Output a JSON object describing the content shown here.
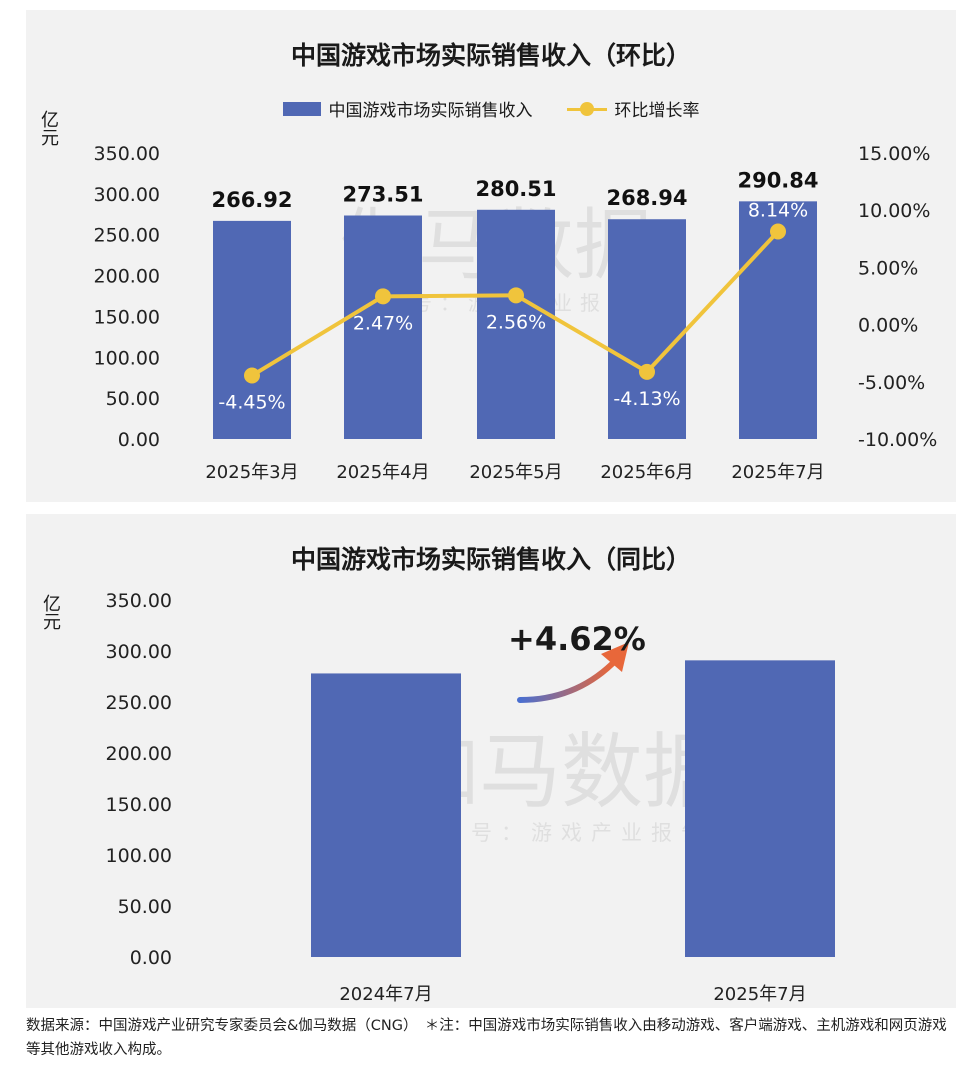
{
  "chart_data": [
    {
      "type": "bar",
      "title": "中国游戏市场实际销售收入（环比）",
      "ylabel": "亿元",
      "categories": [
        "2025年3月",
        "2025年4月",
        "2025年5月",
        "2025年6月",
        "2025年7月"
      ],
      "series": [
        {
          "name": "中国游戏市场实际销售收入",
          "type": "bar",
          "axis": "left",
          "values": [
            266.92,
            273.51,
            280.51,
            268.94,
            290.84
          ],
          "labels": [
            "266.92",
            "273.51",
            "280.51",
            "268.94",
            "290.84"
          ]
        },
        {
          "name": "环比增长率",
          "type": "line",
          "axis": "right",
          "values": [
            -4.45,
            2.47,
            2.56,
            -4.13,
            8.14
          ],
          "labels": [
            "-4.45%",
            "2.47%",
            "2.56%",
            "-4.13%",
            "8.14%"
          ]
        }
      ],
      "ylim": [
        0,
        350
      ],
      "yticks": [
        "0.00",
        "50.00",
        "100.00",
        "150.00",
        "200.00",
        "250.00",
        "300.00",
        "350.00"
      ],
      "y2lim": [
        -10,
        15
      ],
      "y2ticks": [
        "-10.00%",
        "-5.00%",
        "0.00%",
        "5.00%",
        "10.00%",
        "15.00%"
      ],
      "legend": "top",
      "grid": false
    },
    {
      "type": "bar",
      "title": "中国游戏市场实际销售收入（同比）",
      "ylabel": "亿元",
      "categories": [
        "2024年7月",
        "2025年7月"
      ],
      "values": [
        278.0,
        290.84
      ],
      "ylim": [
        0,
        350
      ],
      "yticks": [
        "0.00",
        "50.00",
        "100.00",
        "150.00",
        "200.00",
        "250.00",
        "300.00",
        "350.00"
      ],
      "annotation": "+4.62%",
      "grid": false
    }
  ],
  "colors": {
    "bar": "#5068b4",
    "line": "#f0c43c",
    "panel": "#f2f2f2"
  },
  "watermark": {
    "main": "伽马数据",
    "sub": "微信号：游戏产业报告"
  },
  "source_text": "数据来源：中国游戏产业研究专家委员会&伽马数据（CNG）　＊注：中国游戏市场实际销售收入由移动游戏、客户端游戏、主机游戏和网页游戏等其他游戏收入构成。"
}
